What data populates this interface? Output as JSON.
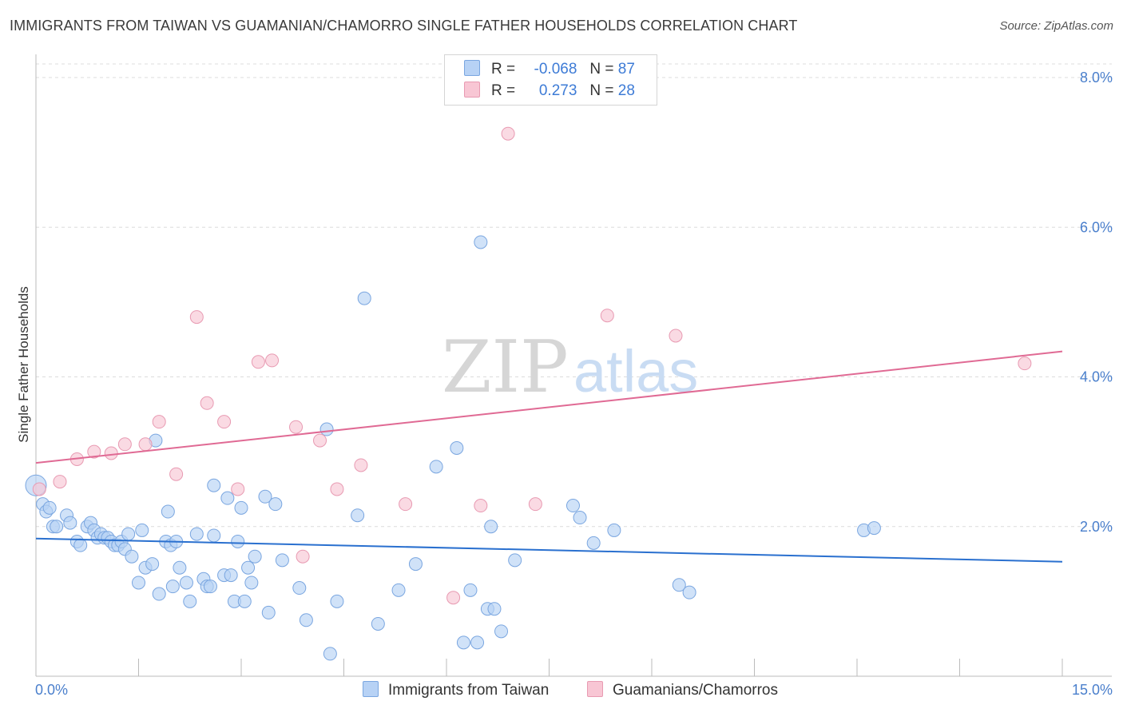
{
  "title": "IMMIGRANTS FROM TAIWAN VS GUAMANIAN/CHAMORRO SINGLE FATHER HOUSEHOLDS CORRELATION CHART",
  "source": "Source: ZipAtlas.com",
  "watermark": {
    "zip": "ZIP",
    "atlas": "atlas"
  },
  "legend": {
    "rows": [
      {
        "r_label": "R =",
        "r_value": "-0.068",
        "n_label": "N =",
        "n_value": "87"
      },
      {
        "r_label": "R =",
        "r_value": "0.273",
        "n_label": "N =",
        "n_value": "28"
      }
    ]
  },
  "bottom_legend": {
    "series1": "Immigrants from Taiwan",
    "series2": "Guamanians/Chamorros"
  },
  "colors": {
    "series1_fill": "#b7d2f5",
    "series1_stroke": "#7aa6e0",
    "series1_line": "#2a70cf",
    "series2_fill": "#f8c6d4",
    "series2_stroke": "#e89ab2",
    "series2_line": "#e06a94",
    "tick_text": "#4a7fcc"
  },
  "chart_data": {
    "type": "scatter",
    "title": "IMMIGRANTS FROM TAIWAN VS GUAMANIAN/CHAMORRO SINGLE FATHER HOUSEHOLDS CORRELATION CHART",
    "xlabel": "",
    "ylabel": "Single Father Households",
    "xlim": [
      0,
      15
    ],
    "ylim": [
      0,
      8.0
    ],
    "x_tick_labels": [
      "0.0%",
      "15.0%"
    ],
    "y_ticks": [
      2.0,
      4.0,
      6.0,
      8.0
    ],
    "y_tick_labels": [
      "2.0%",
      "4.0%",
      "6.0%",
      "8.0%"
    ],
    "grid": true,
    "series": [
      {
        "name": "Immigrants from Taiwan",
        "trend": {
          "x": [
            0,
            15
          ],
          "y": [
            1.84,
            1.53
          ]
        },
        "points": [
          [
            0.0,
            2.55
          ],
          [
            0.1,
            2.3
          ],
          [
            0.15,
            2.2
          ],
          [
            0.2,
            2.25
          ],
          [
            0.25,
            2.0
          ],
          [
            0.3,
            2.0
          ],
          [
            0.45,
            2.15
          ],
          [
            0.5,
            2.05
          ],
          [
            0.6,
            1.8
          ],
          [
            0.65,
            1.75
          ],
          [
            0.75,
            2.0
          ],
          [
            0.8,
            2.05
          ],
          [
            0.85,
            1.95
          ],
          [
            0.9,
            1.85
          ],
          [
            0.95,
            1.9
          ],
          [
            1.0,
            1.85
          ],
          [
            1.05,
            1.85
          ],
          [
            1.1,
            1.8
          ],
          [
            1.15,
            1.75
          ],
          [
            1.2,
            1.75
          ],
          [
            1.25,
            1.8
          ],
          [
            1.3,
            1.7
          ],
          [
            1.35,
            1.9
          ],
          [
            1.4,
            1.6
          ],
          [
            1.5,
            1.25
          ],
          [
            1.55,
            1.95
          ],
          [
            1.6,
            1.45
          ],
          [
            1.7,
            1.5
          ],
          [
            1.75,
            3.15
          ],
          [
            1.8,
            1.1
          ],
          [
            1.9,
            1.8
          ],
          [
            1.93,
            2.2
          ],
          [
            1.97,
            1.75
          ],
          [
            2.0,
            1.2
          ],
          [
            2.05,
            1.8
          ],
          [
            2.1,
            1.45
          ],
          [
            2.2,
            1.25
          ],
          [
            2.25,
            1.0
          ],
          [
            2.35,
            1.9
          ],
          [
            2.45,
            1.3
          ],
          [
            2.5,
            1.2
          ],
          [
            2.55,
            1.2
          ],
          [
            2.6,
            1.88
          ],
          [
            2.6,
            2.55
          ],
          [
            2.75,
            1.35
          ],
          [
            2.8,
            2.38
          ],
          [
            2.85,
            1.35
          ],
          [
            2.9,
            1.0
          ],
          [
            2.95,
            1.8
          ],
          [
            3.0,
            2.25
          ],
          [
            3.05,
            1.0
          ],
          [
            3.1,
            1.45
          ],
          [
            3.15,
            1.25
          ],
          [
            3.2,
            1.6
          ],
          [
            3.35,
            2.4
          ],
          [
            3.4,
            0.85
          ],
          [
            3.5,
            2.3
          ],
          [
            3.6,
            1.55
          ],
          [
            3.85,
            1.18
          ],
          [
            3.95,
            0.75
          ],
          [
            4.25,
            3.3
          ],
          [
            4.3,
            0.3
          ],
          [
            4.4,
            1.0
          ],
          [
            4.7,
            2.15
          ],
          [
            4.8,
            5.05
          ],
          [
            5.0,
            0.7
          ],
          [
            5.3,
            1.15
          ],
          [
            5.55,
            1.5
          ],
          [
            5.85,
            2.8
          ],
          [
            6.15,
            3.05
          ],
          [
            6.25,
            0.45
          ],
          [
            6.35,
            1.15
          ],
          [
            6.45,
            0.45
          ],
          [
            6.5,
            5.8
          ],
          [
            6.6,
            0.9
          ],
          [
            6.65,
            2.0
          ],
          [
            6.7,
            0.9
          ],
          [
            6.8,
            0.6
          ],
          [
            7.0,
            1.55
          ],
          [
            7.85,
            2.28
          ],
          [
            7.95,
            2.12
          ],
          [
            8.15,
            1.78
          ],
          [
            8.45,
            1.95
          ],
          [
            9.4,
            1.22
          ],
          [
            9.55,
            1.12
          ],
          [
            12.1,
            1.95
          ],
          [
            12.25,
            1.98
          ]
        ]
      },
      {
        "name": "Guamanians/Chamorros",
        "trend": {
          "x": [
            0,
            15
          ],
          "y": [
            2.85,
            4.34
          ]
        },
        "points": [
          [
            0.05,
            2.5
          ],
          [
            0.35,
            2.6
          ],
          [
            0.6,
            2.9
          ],
          [
            0.85,
            3.0
          ],
          [
            1.1,
            2.98
          ],
          [
            1.3,
            3.1
          ],
          [
            1.6,
            3.1
          ],
          [
            1.8,
            3.4
          ],
          [
            2.05,
            2.7
          ],
          [
            2.35,
            4.8
          ],
          [
            2.5,
            3.65
          ],
          [
            2.75,
            3.4
          ],
          [
            2.95,
            2.5
          ],
          [
            3.25,
            4.2
          ],
          [
            3.45,
            4.22
          ],
          [
            3.8,
            3.33
          ],
          [
            3.9,
            1.6
          ],
          [
            4.15,
            3.15
          ],
          [
            4.4,
            2.5
          ],
          [
            4.75,
            2.82
          ],
          [
            5.4,
            2.3
          ],
          [
            6.1,
            1.05
          ],
          [
            6.5,
            2.28
          ],
          [
            6.9,
            7.25
          ],
          [
            7.3,
            2.3
          ],
          [
            8.35,
            4.82
          ],
          [
            9.35,
            4.55
          ],
          [
            14.45,
            4.18
          ]
        ]
      }
    ]
  }
}
